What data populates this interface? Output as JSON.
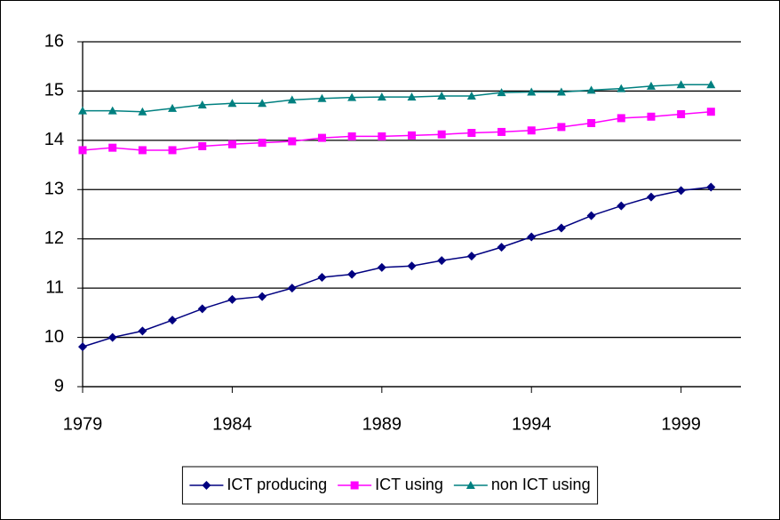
{
  "chart_data": {
    "type": "line",
    "x": [
      1979,
      1980,
      1981,
      1982,
      1983,
      1984,
      1985,
      1986,
      1987,
      1988,
      1989,
      1990,
      1991,
      1992,
      1993,
      1994,
      1995,
      1996,
      1997,
      1998,
      1999,
      2000
    ],
    "series": [
      {
        "name": "ICT producing",
        "color": "#000080",
        "marker": "diamond",
        "values": [
          9.81,
          10.0,
          10.13,
          10.35,
          10.58,
          10.77,
          10.83,
          11.0,
          11.22,
          11.28,
          11.42,
          11.45,
          11.56,
          11.65,
          11.83,
          12.04,
          12.22,
          12.47,
          12.67,
          12.85,
          12.98,
          13.05
        ]
      },
      {
        "name": "ICT using",
        "color": "#ff00ff",
        "marker": "square",
        "values": [
          13.8,
          13.85,
          13.8,
          13.8,
          13.88,
          13.92,
          13.95,
          13.98,
          14.05,
          14.08,
          14.08,
          14.1,
          14.12,
          14.15,
          14.17,
          14.2,
          14.27,
          14.35,
          14.45,
          14.48,
          14.53,
          14.58
        ]
      },
      {
        "name": "non ICT using",
        "color": "#008080",
        "marker": "triangle",
        "values": [
          14.6,
          14.6,
          14.58,
          14.65,
          14.72,
          14.75,
          14.75,
          14.82,
          14.85,
          14.87,
          14.88,
          14.88,
          14.9,
          14.9,
          14.97,
          14.98,
          14.98,
          15.02,
          15.05,
          15.1,
          15.13,
          15.13
        ]
      }
    ],
    "xlim": [
      1979,
      2001
    ],
    "xticks": [
      1979,
      1984,
      1989,
      1994,
      1999
    ],
    "ylim": [
      9,
      16
    ],
    "yticks": [
      9,
      10,
      11,
      12,
      13,
      14,
      15,
      16
    ],
    "grid": true,
    "legend": "bottom"
  }
}
